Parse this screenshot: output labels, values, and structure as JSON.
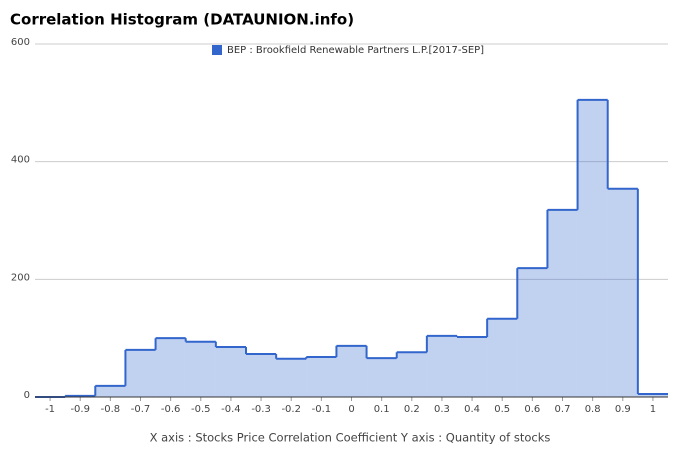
{
  "chart_data": {
    "type": "step_area",
    "title": "Correlation Histogram (DATAUNION.info)",
    "x_label": "X axis : Stocks Price Correlation Coefficient  Y axis : Quantity of stocks",
    "x": [
      -1,
      -0.9,
      -0.8,
      -0.7,
      -0.6,
      -0.5,
      -0.4,
      -0.3,
      -0.2,
      -0.1,
      0,
      0.1,
      0.2,
      0.3,
      0.4,
      0.5,
      0.6,
      0.7,
      0.8,
      0.9,
      1
    ],
    "series": [
      {
        "name": "BEP : Brookfield Renewable Partners L.P.[2017-SEP]",
        "color": "#3366cc",
        "values": [
          0,
          2,
          19,
          80,
          100,
          94,
          85,
          73,
          65,
          68,
          87,
          66,
          76,
          104,
          102,
          133,
          219,
          318,
          505,
          354,
          5
        ]
      }
    ],
    "xlim": [
      -1.05,
      1.05
    ],
    "xticks": [
      -1,
      -0.9,
      -0.8,
      -0.7,
      -0.6,
      -0.5,
      -0.4,
      -0.3,
      -0.2,
      -0.1,
      0,
      0.1,
      0.2,
      0.3,
      0.4,
      0.5,
      0.6,
      0.7,
      0.8,
      0.9,
      1
    ],
    "ylim": [
      0,
      600
    ],
    "yticks": [
      0,
      200,
      400,
      600
    ],
    "grid": true
  }
}
